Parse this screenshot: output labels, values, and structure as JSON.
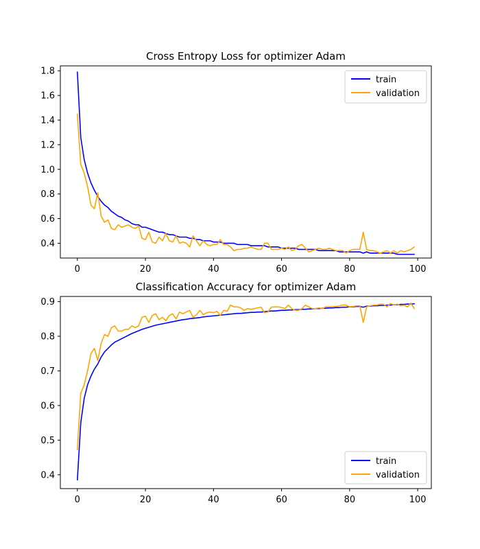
{
  "figure": {
    "colors": {
      "train": "#0000ff",
      "validation": "#ffa500"
    }
  },
  "chart_data": [
    {
      "type": "line",
      "title": "Cross Entropy Loss for optimizer Adam",
      "xlabel": "",
      "ylabel": "",
      "xlim": [
        -5,
        104
      ],
      "ylim": [
        0.28,
        1.84
      ],
      "xticks": [
        0,
        20,
        40,
        60,
        80,
        100
      ],
      "xtick_labels": [
        "0",
        "20",
        "40",
        "60",
        "80",
        "100"
      ],
      "yticks": [
        0.4,
        0.6,
        0.8,
        1.0,
        1.2,
        1.4,
        1.6,
        1.8
      ],
      "ytick_labels": [
        "0.4",
        "0.6",
        "0.8",
        "1.0",
        "1.2",
        "1.4",
        "1.6",
        "1.8"
      ],
      "legend_position": "top-right",
      "x": [
        0,
        1,
        2,
        3,
        4,
        5,
        6,
        7,
        8,
        9,
        10,
        11,
        12,
        13,
        14,
        15,
        16,
        17,
        18,
        19,
        20,
        21,
        22,
        23,
        24,
        25,
        26,
        27,
        28,
        29,
        30,
        31,
        32,
        33,
        34,
        35,
        36,
        37,
        38,
        39,
        40,
        41,
        42,
        43,
        44,
        45,
        46,
        47,
        48,
        49,
        50,
        51,
        52,
        53,
        54,
        55,
        56,
        57,
        58,
        59,
        60,
        61,
        62,
        63,
        64,
        65,
        66,
        67,
        68,
        69,
        70,
        71,
        72,
        73,
        74,
        75,
        76,
        77,
        78,
        79,
        80,
        81,
        82,
        83,
        84,
        85,
        86,
        87,
        88,
        89,
        90,
        91,
        92,
        93,
        94,
        95,
        96,
        97,
        98,
        99
      ],
      "series": [
        {
          "name": "train",
          "color": "#0000ff",
          "values": [
            1.79,
            1.26,
            1.08,
            0.97,
            0.89,
            0.83,
            0.78,
            0.74,
            0.71,
            0.69,
            0.66,
            0.64,
            0.62,
            0.61,
            0.59,
            0.58,
            0.56,
            0.55,
            0.55,
            0.53,
            0.53,
            0.52,
            0.51,
            0.5,
            0.49,
            0.49,
            0.48,
            0.47,
            0.47,
            0.46,
            0.45,
            0.45,
            0.45,
            0.44,
            0.44,
            0.43,
            0.43,
            0.42,
            0.42,
            0.42,
            0.41,
            0.41,
            0.41,
            0.4,
            0.4,
            0.4,
            0.4,
            0.39,
            0.39,
            0.39,
            0.39,
            0.38,
            0.38,
            0.38,
            0.38,
            0.38,
            0.37,
            0.37,
            0.37,
            0.37,
            0.36,
            0.36,
            0.36,
            0.36,
            0.36,
            0.35,
            0.35,
            0.35,
            0.35,
            0.35,
            0.35,
            0.34,
            0.34,
            0.34,
            0.34,
            0.34,
            0.34,
            0.33,
            0.33,
            0.33,
            0.33,
            0.33,
            0.33,
            0.33,
            0.32,
            0.33,
            0.32,
            0.32,
            0.32,
            0.32,
            0.32,
            0.32,
            0.32,
            0.32,
            0.31,
            0.31,
            0.31,
            0.31,
            0.31,
            0.31
          ]
        },
        {
          "name": "validation",
          "color": "#ffa500",
          "values": [
            1.45,
            1.04,
            0.97,
            0.86,
            0.71,
            0.68,
            0.81,
            0.62,
            0.57,
            0.59,
            0.52,
            0.51,
            0.55,
            0.53,
            0.54,
            0.55,
            0.53,
            0.52,
            0.54,
            0.44,
            0.43,
            0.49,
            0.41,
            0.4,
            0.45,
            0.42,
            0.48,
            0.42,
            0.41,
            0.46,
            0.4,
            0.41,
            0.4,
            0.37,
            0.46,
            0.42,
            0.38,
            0.42,
            0.39,
            0.38,
            0.39,
            0.39,
            0.43,
            0.39,
            0.39,
            0.37,
            0.34,
            0.35,
            0.35,
            0.36,
            0.36,
            0.37,
            0.36,
            0.35,
            0.35,
            0.4,
            0.4,
            0.35,
            0.35,
            0.35,
            0.36,
            0.35,
            0.37,
            0.34,
            0.35,
            0.38,
            0.39,
            0.36,
            0.33,
            0.34,
            0.35,
            0.36,
            0.35,
            0.35,
            0.36,
            0.35,
            0.34,
            0.34,
            0.34,
            0.32,
            0.34,
            0.35,
            0.35,
            0.35,
            0.49,
            0.35,
            0.34,
            0.34,
            0.33,
            0.32,
            0.33,
            0.34,
            0.32,
            0.34,
            0.32,
            0.34,
            0.33,
            0.34,
            0.35,
            0.37
          ]
        }
      ]
    },
    {
      "type": "line",
      "title": "Classification Accuracy for optimizer Adam",
      "xlabel": "",
      "ylabel": "",
      "xlim": [
        -5,
        104
      ],
      "ylim": [
        0.36,
        0.915
      ],
      "xticks": [
        0,
        20,
        40,
        60,
        80,
        100
      ],
      "xtick_labels": [
        "0",
        "20",
        "40",
        "60",
        "80",
        "100"
      ],
      "yticks": [
        0.4,
        0.5,
        0.6,
        0.7,
        0.8,
        0.9
      ],
      "ytick_labels": [
        "0.4",
        "0.5",
        "0.6",
        "0.7",
        "0.8",
        "0.9"
      ],
      "legend_position": "bottom-right",
      "x": [
        0,
        1,
        2,
        3,
        4,
        5,
        6,
        7,
        8,
        9,
        10,
        11,
        12,
        13,
        14,
        15,
        16,
        17,
        18,
        19,
        20,
        21,
        22,
        23,
        24,
        25,
        26,
        27,
        28,
        29,
        30,
        31,
        32,
        33,
        34,
        35,
        36,
        37,
        38,
        39,
        40,
        41,
        42,
        43,
        44,
        45,
        46,
        47,
        48,
        49,
        50,
        51,
        52,
        53,
        54,
        55,
        56,
        57,
        58,
        59,
        60,
        61,
        62,
        63,
        64,
        65,
        66,
        67,
        68,
        69,
        70,
        71,
        72,
        73,
        74,
        75,
        76,
        77,
        78,
        79,
        80,
        81,
        82,
        83,
        84,
        85,
        86,
        87,
        88,
        89,
        90,
        91,
        92,
        93,
        94,
        95,
        96,
        97,
        98,
        99
      ],
      "series": [
        {
          "name": "train",
          "color": "#0000ff",
          "values": [
            0.385,
            0.55,
            0.62,
            0.66,
            0.685,
            0.705,
            0.72,
            0.74,
            0.755,
            0.765,
            0.775,
            0.783,
            0.788,
            0.793,
            0.798,
            0.803,
            0.808,
            0.812,
            0.816,
            0.82,
            0.823,
            0.826,
            0.829,
            0.832,
            0.834,
            0.836,
            0.838,
            0.84,
            0.842,
            0.844,
            0.846,
            0.848,
            0.849,
            0.851,
            0.852,
            0.853,
            0.854,
            0.856,
            0.857,
            0.858,
            0.859,
            0.86,
            0.861,
            0.862,
            0.863,
            0.864,
            0.865,
            0.866,
            0.866,
            0.867,
            0.868,
            0.869,
            0.869,
            0.87,
            0.87,
            0.871,
            0.872,
            0.873,
            0.873,
            0.874,
            0.875,
            0.875,
            0.876,
            0.876,
            0.877,
            0.877,
            0.878,
            0.878,
            0.879,
            0.879,
            0.88,
            0.88,
            0.881,
            0.881,
            0.882,
            0.882,
            0.883,
            0.883,
            0.884,
            0.884,
            0.885,
            0.885,
            0.886,
            0.886,
            0.884,
            0.887,
            0.887,
            0.888,
            0.888,
            0.889,
            0.889,
            0.89,
            0.89,
            0.891,
            0.891,
            0.892,
            0.892,
            0.893,
            0.893,
            0.894
          ]
        },
        {
          "name": "validation",
          "color": "#ffa500",
          "values": [
            0.472,
            0.635,
            0.66,
            0.7,
            0.75,
            0.765,
            0.73,
            0.78,
            0.805,
            0.8,
            0.825,
            0.83,
            0.815,
            0.815,
            0.82,
            0.82,
            0.83,
            0.825,
            0.83,
            0.855,
            0.858,
            0.84,
            0.86,
            0.865,
            0.848,
            0.855,
            0.845,
            0.86,
            0.865,
            0.85,
            0.87,
            0.865,
            0.87,
            0.875,
            0.855,
            0.862,
            0.875,
            0.862,
            0.868,
            0.87,
            0.868,
            0.872,
            0.86,
            0.875,
            0.872,
            0.89,
            0.885,
            0.885,
            0.882,
            0.875,
            0.88,
            0.878,
            0.88,
            0.882,
            0.884,
            0.868,
            0.87,
            0.884,
            0.885,
            0.885,
            0.883,
            0.88,
            0.89,
            0.88,
            0.875,
            0.875,
            0.88,
            0.89,
            0.885,
            0.88,
            0.88,
            0.882,
            0.88,
            0.885,
            0.885,
            0.886,
            0.886,
            0.888,
            0.89,
            0.89,
            0.885,
            0.886,
            0.888,
            0.888,
            0.84,
            0.885,
            0.888,
            0.89,
            0.89,
            0.893,
            0.892,
            0.885,
            0.895,
            0.89,
            0.893,
            0.888,
            0.89,
            0.885,
            0.896,
            0.88
          ]
        }
      ]
    }
  ]
}
